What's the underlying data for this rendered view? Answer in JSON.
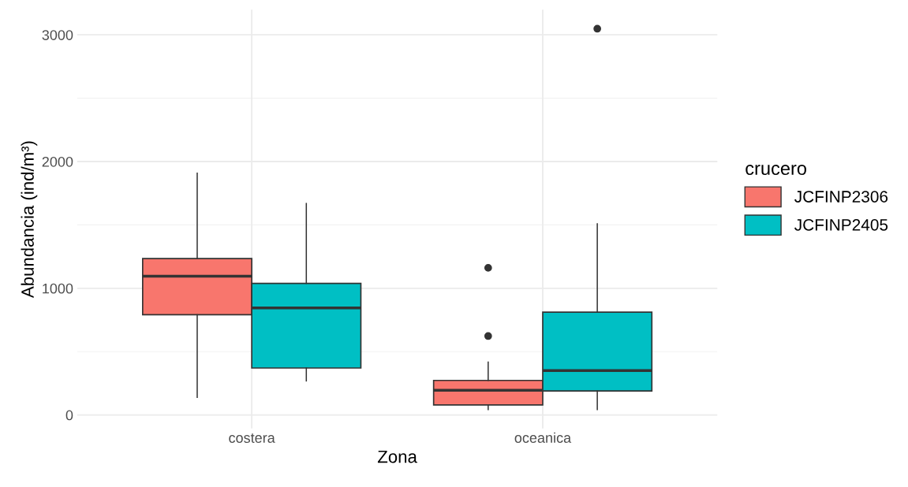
{
  "chart_data": {
    "type": "box",
    "xlabel": "Zona",
    "ylabel": "Abundancia (ind/m³)",
    "legend_title": "crucero",
    "categories": [
      "costera",
      "oceanica"
    ],
    "series": [
      {
        "name": "JCFINP2306",
        "color": "#f8766d",
        "boxes": [
          {
            "low": 139,
            "q1": 791,
            "median": 1095,
            "q3": 1234,
            "high": 1909
          },
          {
            "low": 43,
            "q1": 79,
            "median": 195,
            "q3": 273,
            "high": 418,
            "outliers": [
              623,
              1161
            ]
          }
        ]
      },
      {
        "name": "JCFINP2405",
        "color": "#00bfc4",
        "boxes": [
          {
            "low": 269,
            "q1": 371,
            "median": 845,
            "q3": 1039,
            "high": 1669
          },
          {
            "low": 43,
            "q1": 190,
            "median": 350,
            "q3": 812,
            "high": 1509,
            "outliers": [
              3048
            ]
          }
        ]
      }
    ],
    "ylim": [
      -107,
      3198
    ],
    "yticks": [
      0,
      1000,
      2000,
      3000
    ],
    "grid": true,
    "legend": "right"
  }
}
